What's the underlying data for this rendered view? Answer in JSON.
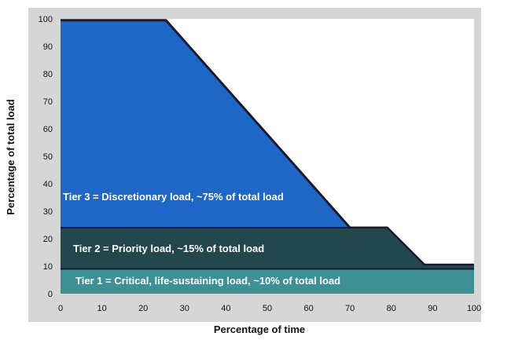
{
  "chart_data": {
    "type": "area",
    "xlabel": "Percentage of time",
    "ylabel": "Percentage of total load",
    "xlim": [
      0,
      100
    ],
    "ylim": [
      0,
      100
    ],
    "x_ticks": [
      0,
      10,
      20,
      30,
      40,
      50,
      60,
      70,
      80,
      90,
      100
    ],
    "y_ticks": [
      0,
      10,
      20,
      30,
      40,
      50,
      60,
      70,
      80,
      90,
      100
    ],
    "grid": false,
    "series": [
      {
        "name": "Tier 1 = Critical, life-sustaining load, ~10% of total load",
        "color": "#3f8f96",
        "x": [
          0,
          100
        ],
        "y": [
          9,
          9
        ]
      },
      {
        "name": "Tier 2 = Priority load, ~15% of total load",
        "color": "#22484e",
        "x": [
          0,
          70,
          79,
          88,
          100
        ],
        "y": [
          24,
          24,
          24,
          10.5,
          10.5
        ]
      },
      {
        "name": "Tier 3 = Discretionary load, ~75% of total load",
        "color": "#1e67c6",
        "x": [
          0,
          25.5,
          70,
          79,
          88,
          100
        ],
        "y": [
          99.5,
          99.5,
          24,
          24,
          10.5,
          10.5
        ]
      }
    ],
    "annotations": {
      "tier3": "Tier 3 = Discretionary load, ~75% of total load",
      "tier2": "Tier 2 = Priority load, ~15% of total load",
      "tier1": "Tier 1 = Critical, life-sustaining load, ~10% of total load"
    },
    "colors": {
      "plot_background": "#ffffff",
      "outer_background": "#d6d6d6",
      "edge_line": "#1a1a2e"
    }
  }
}
